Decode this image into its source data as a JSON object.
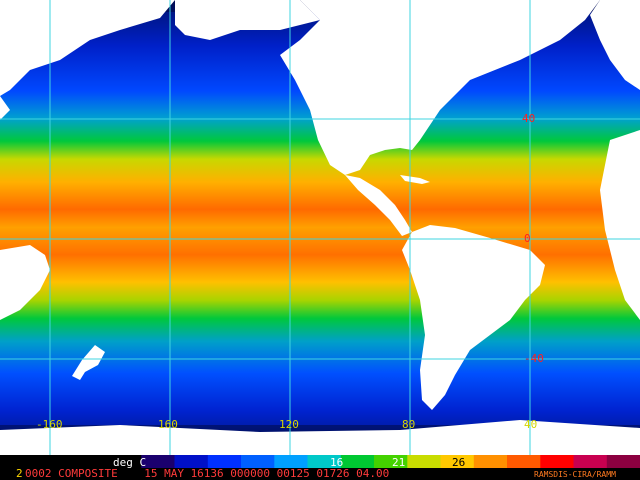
{
  "colors": {
    "graticule": "#3fd4e0",
    "land": "#ffffff",
    "lat_label": "#ff2020",
    "lon_label": "#d6d600",
    "status_text": "#ff3b3b",
    "status_prefix": "#ffd700"
  },
  "map": {
    "latitude_labels": [
      "40",
      "0",
      "-40"
    ],
    "longitude_labels": [
      "-160",
      "160",
      "120",
      "80",
      "40"
    ]
  },
  "colorbar": {
    "unit_label": "deg C",
    "tick_labels": [
      "16",
      "21",
      "26"
    ],
    "palette": [
      "#000000",
      "#1a006e",
      "#0010c8",
      "#0030ff",
      "#0060ff",
      "#00a0ff",
      "#00c8c8",
      "#00c832",
      "#44d200",
      "#c8dc00",
      "#ffc800",
      "#ff9000",
      "#ff5a00",
      "#ff0000",
      "#c80050",
      "#8c0040"
    ]
  },
  "status_bar": {
    "prefix": "2",
    "text": "0002 COMPOSITE    15 MAY 16136 000000 00125 01726 04.00",
    "credit": "RAMSDIS-CIRA/RAMM"
  }
}
